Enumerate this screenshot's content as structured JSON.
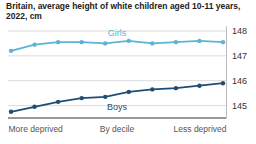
{
  "chart_data": {
    "type": "line",
    "title": "Britain, average height of white children aged 10-11 years, 2022, cm",
    "x_label": "By decile",
    "categories": [
      "More deprived",
      null,
      null,
      null,
      null,
      null,
      null,
      null,
      null,
      "Less deprived"
    ],
    "series": [
      {
        "name": "Girls",
        "color": "#5ab4d6",
        "marker": "circle",
        "values": [
          147.2,
          147.45,
          147.55,
          147.55,
          147.5,
          147.6,
          147.5,
          147.55,
          147.6,
          147.55
        ]
      },
      {
        "name": "Boys",
        "color": "#1f4d78",
        "marker": "circle",
        "values": [
          144.75,
          144.95,
          145.15,
          145.3,
          145.35,
          145.55,
          145.65,
          145.7,
          145.8,
          145.9
        ]
      }
    ],
    "ylim": [
      144.5,
      148.2
    ],
    "yticks": [
      145,
      146,
      147,
      148
    ],
    "grid": true
  }
}
